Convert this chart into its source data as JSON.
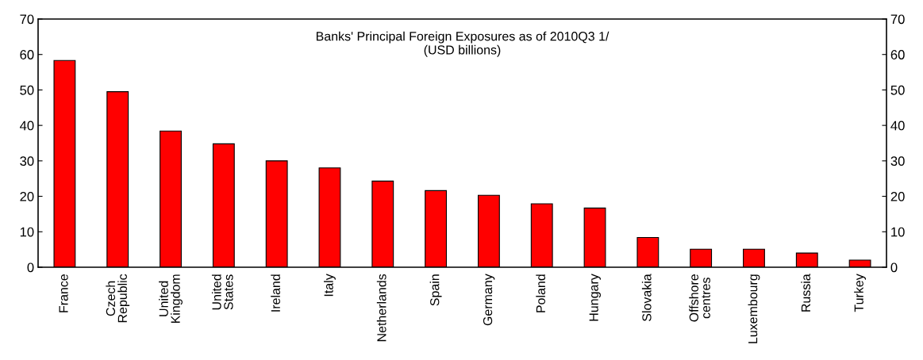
{
  "chart_data": {
    "type": "bar",
    "title": "Banks' Principal Foreign Exposures as of 2010Q3 1/\n(USD billions)",
    "categories": [
      "France",
      "Czech\nRepublic",
      "United\nKingdom",
      "United\nStates",
      "Ireland",
      "Italy",
      "Netherlands",
      "Spain",
      "Germany",
      "Poland",
      "Hungary",
      "Slovakia",
      "Offshore\ncentres",
      "Luxembourg",
      "Russia",
      "Turkey"
    ],
    "values": [
      58.3,
      49.5,
      38.4,
      34.8,
      30.0,
      28.0,
      24.3,
      21.6,
      20.3,
      17.9,
      16.7,
      8.4,
      5.1,
      5.1,
      4.0,
      2.0
    ],
    "color": "#ff0000",
    "ylim": [
      0,
      70
    ],
    "yticks": [
      0,
      10,
      20,
      30,
      40,
      50,
      60,
      70
    ],
    "y2lim": [
      0,
      70
    ],
    "y2ticks": [
      0,
      10,
      20,
      30,
      40,
      50,
      60,
      70
    ],
    "grid": false
  }
}
